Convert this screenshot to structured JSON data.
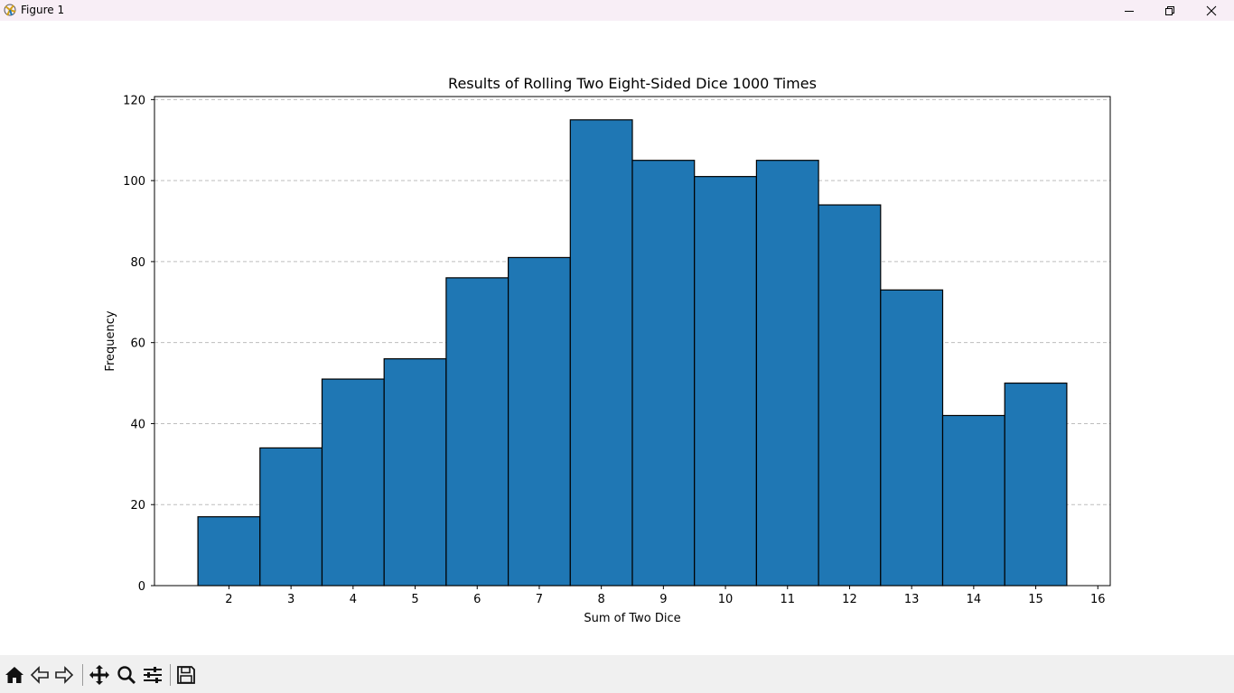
{
  "window": {
    "title": "Figure 1",
    "controls": [
      "minimize",
      "maximize",
      "close"
    ]
  },
  "toolbar": {
    "buttons": [
      {
        "name": "home",
        "icon": "home-icon"
      },
      {
        "name": "back",
        "icon": "back-arrow-icon"
      },
      {
        "name": "forward",
        "icon": "forward-arrow-icon"
      },
      {
        "name": "pan",
        "icon": "move-icon"
      },
      {
        "name": "zoom",
        "icon": "magnifier-icon"
      },
      {
        "name": "configure-subplots",
        "icon": "sliders-icon"
      },
      {
        "name": "save",
        "icon": "floppy-disk-icon"
      }
    ]
  },
  "chart_data": {
    "type": "bar",
    "title": "Results of Rolling Two Eight-Sided Dice 1000 Times",
    "xlabel": "Sum of Two Dice",
    "ylabel": "Frequency",
    "categories": [
      2,
      3,
      4,
      5,
      6,
      7,
      8,
      9,
      10,
      11,
      12,
      13,
      14,
      15
    ],
    "values": [
      17,
      34,
      51,
      56,
      76,
      81,
      115,
      105,
      101,
      105,
      94,
      73,
      42,
      50
    ],
    "xticks": [
      "2",
      "3",
      "4",
      "5",
      "6",
      "7",
      "8",
      "9",
      "10",
      "11",
      "12",
      "13",
      "14",
      "15",
      "16"
    ],
    "yticks": [
      "0",
      "20",
      "40",
      "60",
      "80",
      "100",
      "120"
    ],
    "ylim": [
      0,
      120.75
    ],
    "xlim": [
      0.8,
      16.2
    ],
    "grid": "y-dashed",
    "bar_color": "#1f77b4",
    "edge_color": "#000000"
  }
}
